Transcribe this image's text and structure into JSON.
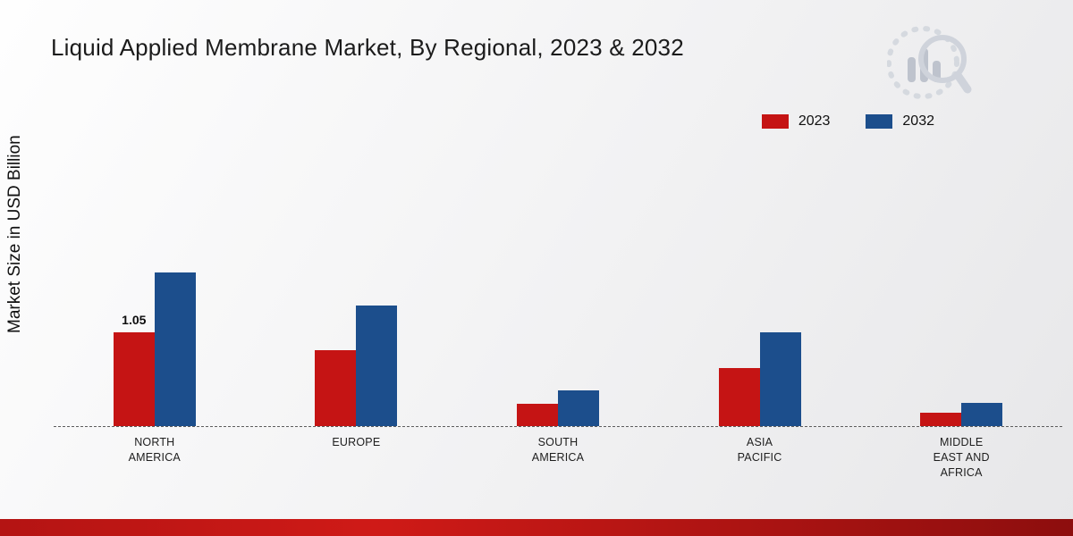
{
  "page": {
    "title": "Liquid Applied Membrane Market, By Regional, 2023 &amp; 2032"
  },
  "colors": {
    "series_2023": "#c51414",
    "series_2032": "#1c4e8c",
    "footer_accent": "#b41413"
  },
  "chart_data": {
    "type": "bar",
    "title": "Liquid Applied Membrane Market, By Regional, 2023 & 2032",
    "xlabel": "",
    "ylabel": "Market Size in USD Billion",
    "categories": [
      "NORTH AMERICA",
      "EUROPE",
      "SOUTH AMERICA",
      "ASIA PACIFIC",
      "MIDDLE EAST AND AFRICA"
    ],
    "series": [
      {
        "name": "2023",
        "color": "#c51414",
        "values": [
          1.05,
          0.85,
          0.25,
          0.65,
          0.15
        ],
        "labels": [
          "1.05",
          null,
          null,
          null,
          null
        ]
      },
      {
        "name": "2032",
        "color": "#1c4e8c",
        "values": [
          1.72,
          1.35,
          0.4,
          1.05,
          0.26
        ],
        "labels": [
          null,
          null,
          null,
          null,
          null
        ]
      }
    ],
    "ylim": [
      0,
      2.77
    ],
    "grid": false,
    "legend_position": "top-right",
    "baseline_style": "dashed",
    "annotations": [
      {
        "text": "1.05",
        "series": "2023",
        "category": "NORTH AMERICA"
      }
    ]
  },
  "logo": {
    "name": "market-research-brand-logo"
  }
}
